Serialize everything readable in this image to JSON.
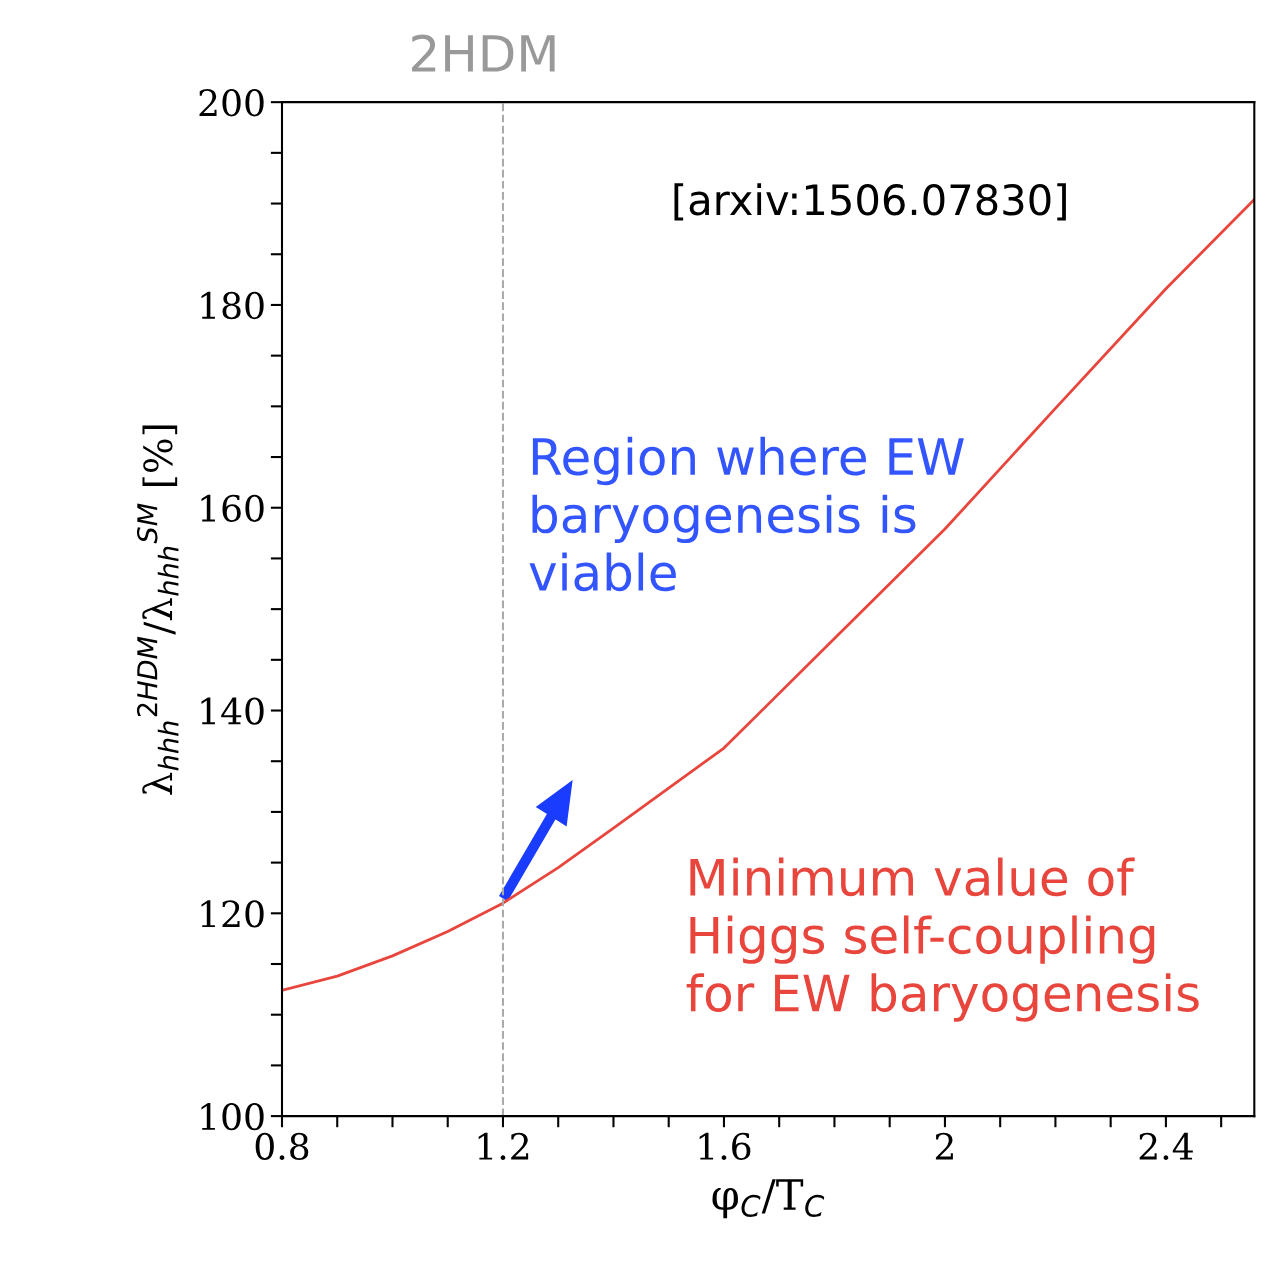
{
  "chart_data": {
    "type": "line",
    "title": "2HDM",
    "xlabel": "φ$_{C}$/T$_{C}$",
    "ylabel": "λ$_{hhh}$$^{2HDM}$/λ$_{hhh}$$^{SM}$ [%]",
    "x": [
      0.8,
      0.9,
      1.0,
      1.1,
      1.2,
      1.3,
      1.4,
      1.6,
      1.8,
      2.0,
      2.2,
      2.4,
      2.56
    ],
    "series": [
      {
        "color": "#e8453c",
        "values": [
          112.4,
          113.8,
          115.8,
          118.2,
          121.0,
          124.5,
          128.4,
          136.3,
          147.1,
          157.9,
          169.8,
          181.6,
          190.4
        ]
      }
    ],
    "xlim": [
      0.8,
      2.56
    ],
    "ylim": [
      100,
      200
    ],
    "xticks": [
      0.8,
      {
        "value": 0.9,
        "label": null
      },
      {
        "value": 1.0,
        "label": null
      },
      {
        "value": 1.1,
        "label": null
      },
      1.2,
      {
        "value": 1.3,
        "label": null
      },
      {
        "value": 1.4,
        "label": null
      },
      {
        "value": 1.5,
        "label": null
      },
      1.6,
      {
        "value": 1.7,
        "label": null
      },
      {
        "value": 1.8,
        "label": null
      },
      {
        "value": 1.9,
        "label": null
      },
      2,
      {
        "value": 2.1,
        "label": null
      },
      {
        "value": 2.2,
        "label": null
      },
      {
        "value": 2.3,
        "label": null
      },
      2.4,
      {
        "value": 2.5,
        "label": null
      }
    ],
    "yticks": [
      100,
      {
        "value": 105,
        "label": null
      },
      {
        "value": 110,
        "label": null
      },
      {
        "value": 115,
        "label": null
      },
      120,
      {
        "value": 125,
        "label": null
      },
      {
        "value": 130,
        "label": null
      },
      {
        "value": 135,
        "label": null
      },
      140,
      {
        "value": 145,
        "label": null
      },
      {
        "value": 150,
        "label": null
      },
      {
        "value": 155,
        "label": null
      },
      160,
      {
        "value": 165,
        "label": null
      },
      {
        "value": 170,
        "label": null
      },
      {
        "value": 175,
        "label": null
      },
      180,
      {
        "value": 185,
        "label": null
      },
      {
        "value": 190,
        "label": null
      },
      {
        "value": 195,
        "label": null
      },
      200
    ],
    "ref_lines": [
      {
        "axis": "x",
        "value": 1.2,
        "color": "#aaaaaa",
        "line_style": "dashed"
      }
    ],
    "annotations": [
      "[arxiv:1506.07830]",
      "Region where EW\nbaryogenesis is\nviable",
      "Minimum value of\nHiggs self-coupling\nfor EW baryogenesis"
    ],
    "grid": false,
    "legend": false,
    "marker": "none",
    "line_style": "solid"
  }
}
